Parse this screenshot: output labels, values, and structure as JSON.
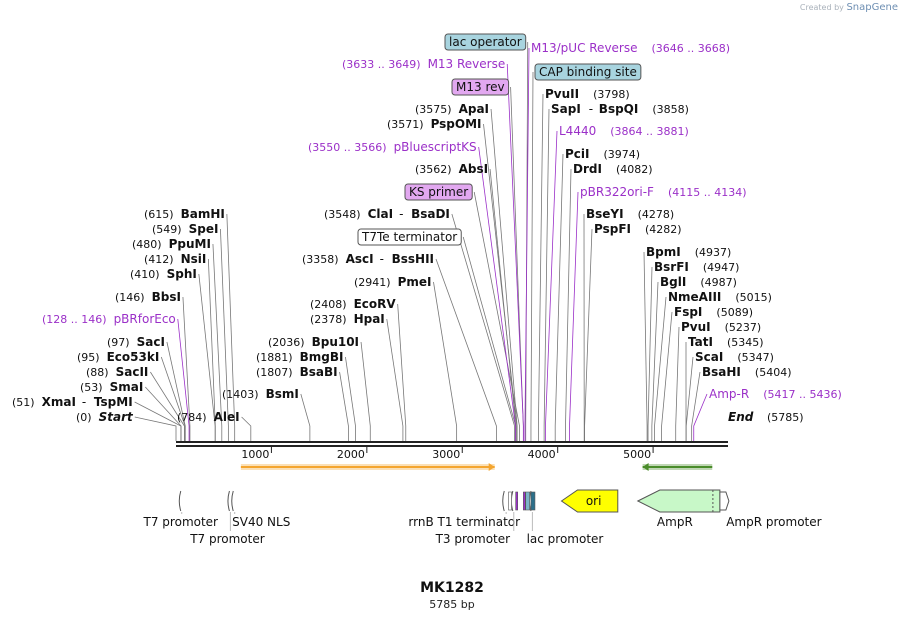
{
  "credit": {
    "prefix": "Created by",
    "brand": "SnapGene"
  },
  "title": "MK1282",
  "length_label": "5785 bp",
  "colors": {
    "enzyme": "#000000",
    "primer": "#9b30c8",
    "feature_blue": "#a8d4df",
    "feature_purple": "#e2a8f0",
    "ampr": "#c8f8c8",
    "ori": "#ffff00",
    "arrow_orange": "#f4a52f",
    "arrow_green": "#4a8c2a"
  },
  "ticks": [
    {
      "label": "1000",
      "bp": 1000
    },
    {
      "label": "2000",
      "bp": 2000
    },
    {
      "label": "3000",
      "bp": 3000
    },
    {
      "label": "4000",
      "bp": 4000
    },
    {
      "label": "5000",
      "bp": 5000
    }
  ],
  "left_labels": [
    {
      "num": "(615)",
      "name": "BamHI",
      "bp": 615
    },
    {
      "num": "(549)",
      "name": "SpeI",
      "bp": 549
    },
    {
      "num": "(480)",
      "name": "PpuMI",
      "bp": 480
    },
    {
      "num": "(412)",
      "name": "NsiI",
      "bp": 412
    },
    {
      "num": "(410)",
      "name": "SphI",
      "bp": 410
    },
    {
      "num": "(146)",
      "name": "BbsI",
      "bp": 146
    },
    {
      "num": "(128 .. 146)",
      "name": "pBRforEco",
      "bp": 137,
      "kind": "primer"
    },
    {
      "num": "(97)",
      "name": "SacI",
      "bp": 97
    },
    {
      "num": "(95)",
      "name": "Eco53kI",
      "bp": 95
    },
    {
      "num": "(88)",
      "name": "SacII",
      "bp": 88
    },
    {
      "num": "(53)",
      "name": "SmaI",
      "bp": 53
    },
    {
      "num": "(51)",
      "name": "XmaI",
      "name2": "TspMI",
      "bp": 51
    },
    {
      "num": "(0)",
      "name": "Start",
      "bp": 0,
      "italic": true
    }
  ],
  "mid_labels": [
    {
      "num": "(784)",
      "name": "AleI",
      "bp": 784
    },
    {
      "num": "(1403)",
      "name": "BsmI",
      "bp": 1403
    },
    {
      "num": "(1807)",
      "name": "BsaBI",
      "bp": 1807
    },
    {
      "num": "(1881)",
      "name": "BmgBI",
      "bp": 1881
    },
    {
      "num": "(2036)",
      "name": "Bpu10I",
      "bp": 2036
    },
    {
      "num": "(2378)",
      "name": "HpaI",
      "bp": 2378
    },
    {
      "num": "(2408)",
      "name": "EcoRV",
      "bp": 2408
    },
    {
      "num": "(2941)",
      "name": "PmeI",
      "bp": 2941
    },
    {
      "num": "(3358)",
      "name": "AscI",
      "name2": "BssHII",
      "bp": 3358
    },
    {
      "num": "",
      "name": "T7Te terminator",
      "bp": 3560,
      "kind": "box-white"
    },
    {
      "num": "(3548)",
      "name": "ClaI",
      "name2": "BsaDI",
      "bp": 3548
    },
    {
      "num": "",
      "name": "KS primer",
      "bp": 3600,
      "kind": "box-purple"
    },
    {
      "num": "(3562)",
      "name": "AbsI",
      "bp": 3562
    },
    {
      "num": "(3550 .. 3566)",
      "name": "pBluescriptKS",
      "bp": 3558,
      "kind": "primer"
    },
    {
      "num": "(3571)",
      "name": "PspOMI",
      "bp": 3571
    },
    {
      "num": "(3575)",
      "name": "ApaI",
      "bp": 3575
    },
    {
      "num": "",
      "name": "M13 rev",
      "bp": 3640,
      "kind": "box-purple"
    },
    {
      "num": "(3633 .. 3649)",
      "name": "M13 Reverse",
      "bp": 3641,
      "kind": "primer"
    },
    {
      "num": "",
      "name": "lac operator",
      "bp": 3665,
      "kind": "box-blue"
    }
  ],
  "right_labels": [
    {
      "num": "(3646 .. 3668)",
      "name": "M13/pUC Reverse",
      "bp": 3657,
      "kind": "primer"
    },
    {
      "num": "",
      "name": "CAP binding site",
      "bp": 3720,
      "kind": "box-blue"
    },
    {
      "num": "(3798)",
      "name": "PvuII",
      "bp": 3798
    },
    {
      "num": "(3858)",
      "name": "SapI",
      "name2": "BspQI",
      "bp": 3858
    },
    {
      "num": "(3864 .. 3881)",
      "name": "L4440",
      "bp": 3872,
      "kind": "primer"
    },
    {
      "num": "(3974)",
      "name": "PciI",
      "bp": 3974
    },
    {
      "num": "(4082)",
      "name": "DrdI",
      "bp": 4082
    },
    {
      "num": "(4115 .. 4134)",
      "name": "pBR322ori-F",
      "bp": 4124,
      "kind": "primer"
    },
    {
      "num": "(4278)",
      "name": "BseYI",
      "bp": 4278
    },
    {
      "num": "(4282)",
      "name": "PspFI",
      "bp": 4282
    },
    {
      "num": "(4937)",
      "name": "BpmI",
      "bp": 4937
    },
    {
      "num": "(4947)",
      "name": "BsrFI",
      "bp": 4947
    },
    {
      "num": "(4987)",
      "name": "BglI",
      "bp": 4987
    },
    {
      "num": "(5015)",
      "name": "NmeAIII",
      "bp": 5015
    },
    {
      "num": "(5089)",
      "name": "FspI",
      "bp": 5089
    },
    {
      "num": "(5237)",
      "name": "PvuI",
      "bp": 5237
    },
    {
      "num": "(5345)",
      "name": "TatI",
      "bp": 5345
    },
    {
      "num": "(5347)",
      "name": "ScaI",
      "bp": 5347
    },
    {
      "num": "(5404)",
      "name": "BsaHI",
      "bp": 5404
    },
    {
      "num": "(5417 .. 5436)",
      "name": "Amp-R",
      "bp": 5426,
      "kind": "primer"
    },
    {
      "num": "(5785)",
      "name": "End",
      "bp": 5785,
      "italic": true
    }
  ],
  "features": [
    {
      "name": "T7 promoter",
      "start": 50,
      "end": 70
    },
    {
      "name": "T7 promoter",
      "start": 560,
      "end": 580
    },
    {
      "name": "SV40 NLS",
      "start": 600,
      "end": 630
    },
    {
      "name": "rrnB T1 terminator",
      "start": 3440,
      "end": 3480
    },
    {
      "name": "T3 promoter",
      "start": 3530,
      "end": 3550
    },
    {
      "name": "lac promoter",
      "start": 3720,
      "end": 3750
    },
    {
      "name": "ori",
      "start": 4040,
      "end": 4630,
      "direction": "left"
    },
    {
      "name": "AmpR",
      "start": 4840,
      "end": 5700,
      "direction": "left"
    },
    {
      "name": "AmpR promoter",
      "start": 5700,
      "end": 5785
    }
  ],
  "orf_arrows": [
    {
      "start": 680,
      "end": 3340,
      "direction": "right"
    },
    {
      "start": 4890,
      "end": 5620,
      "direction": "left"
    }
  ]
}
